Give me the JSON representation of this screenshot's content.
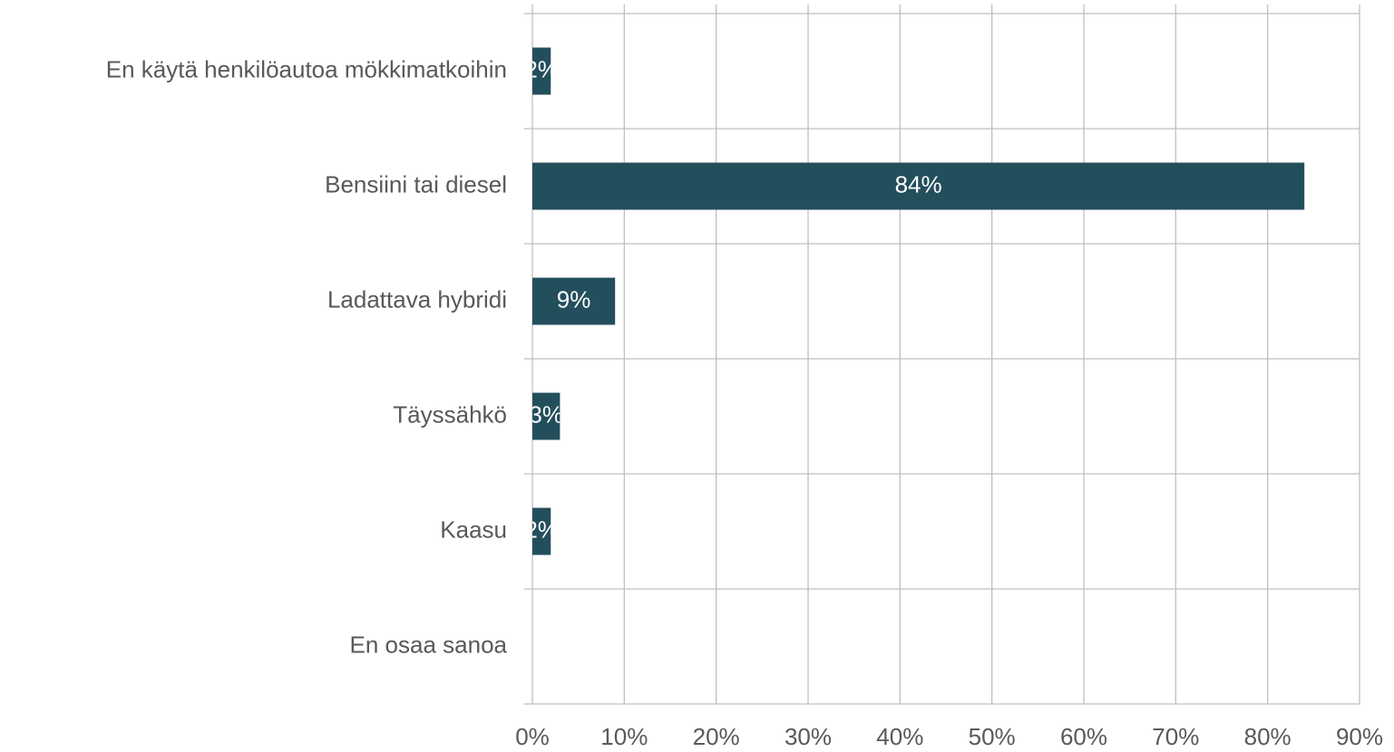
{
  "chart_data": {
    "type": "barh",
    "categories": [
      "En käytä henkilöautoa mökkimatkoihin",
      "Bensiini tai diesel",
      "Ladattava hybridi",
      "Täyssähkö",
      "Kaasu",
      "En osaa sanoa"
    ],
    "values": [
      2,
      84,
      9,
      3,
      2,
      0
    ],
    "value_labels": [
      "2%",
      "84%",
      "9%",
      "3%",
      "2%",
      null
    ],
    "color": "#234e5c",
    "xlim": [
      0,
      90
    ],
    "xticks": [
      {
        "value": 0,
        "label": "0%"
      },
      {
        "value": 10,
        "label": "10%"
      },
      {
        "value": 20,
        "label": "20%"
      },
      {
        "value": 30,
        "label": "30%"
      },
      {
        "value": 40,
        "label": "40%"
      },
      {
        "value": 50,
        "label": "50%"
      },
      {
        "value": 60,
        "label": "60%"
      },
      {
        "value": 70,
        "label": "70%"
      },
      {
        "value": 80,
        "label": "80%"
      },
      {
        "value": 90,
        "label": "90%"
      }
    ],
    "grid": true
  }
}
